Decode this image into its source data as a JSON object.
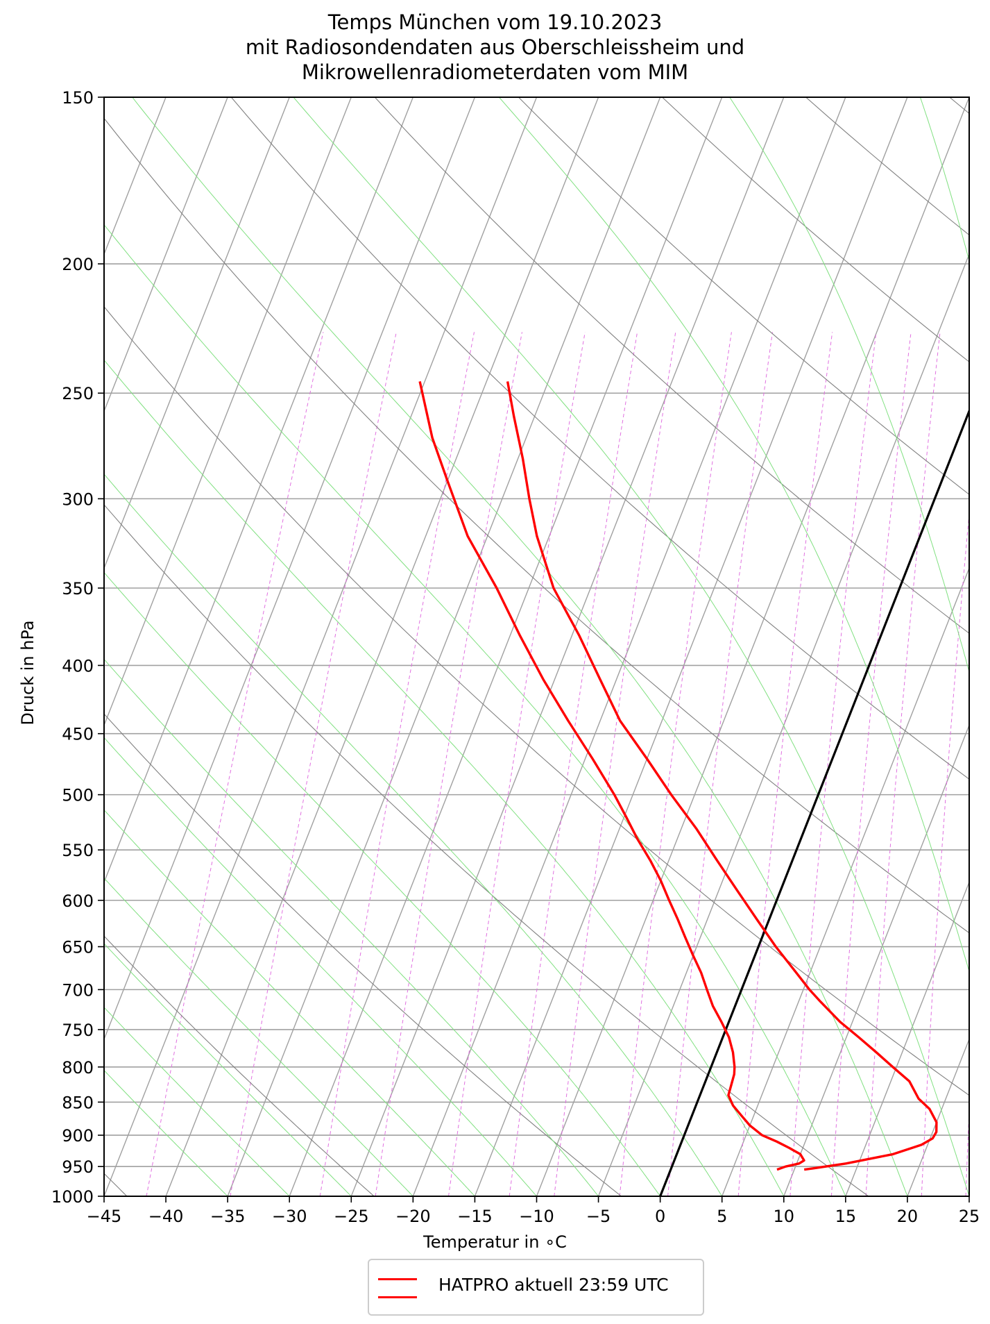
{
  "title": {
    "line1": "Temps München vom 19.10.2023",
    "line2": "mit Radiosondendaten aus Oberschleissheim und",
    "line3": "Mikrowellenradiometerdaten vom MIM"
  },
  "chart_data": {
    "type": "line",
    "kind": "skew-T log-p diagram",
    "xlabel": "Temperatur in  ∘C",
    "ylabel": "Druck in hPa",
    "xlim": [
      -45,
      25
    ],
    "ylim": [
      1000,
      150
    ],
    "y_scale": "log",
    "x_ticks": [
      "−45",
      "−40",
      "−35",
      "−30",
      "−25",
      "−20",
      "−15",
      "−10",
      "−5",
      "0",
      "5",
      "10",
      "15",
      "20",
      "25"
    ],
    "y_ticks": [
      "150",
      "200",
      "250",
      "300",
      "350",
      "400",
      "450",
      "500",
      "550",
      "600",
      "650",
      "700",
      "750",
      "800",
      "850",
      "900",
      "950",
      "1000"
    ],
    "grid": true,
    "legend_position": "bottom-center",
    "legend": [
      {
        "label": "HATPRO aktuell 23:59 UTC",
        "color": "#ff0000"
      }
    ],
    "colors": {
      "profile": "#ff0000",
      "isotherms": "#a0a0a0",
      "dry_adiabats": "#808080",
      "moist_adiabats": "#80e080",
      "mixing_ratio": "#e070e0",
      "zero_isotherm": "#000000"
    },
    "series": [
      {
        "role": "temperature",
        "color": "#ff0000",
        "pressure": [
          955,
          953,
          945,
          930,
          915,
          905,
          895,
          880,
          860,
          845,
          820,
          800,
          780,
          760,
          740,
          715,
          700,
          680,
          650,
          620,
          590,
          560,
          530,
          500,
          470,
          440,
          410,
          380,
          350,
          320,
          300,
          280,
          260,
          245
        ],
        "temperature": [
          10.8,
          11.5,
          14.0,
          17.5,
          19.5,
          20.2,
          20.3,
          20.0,
          19.0,
          17.8,
          16.5,
          14.7,
          12.9,
          11.0,
          9.0,
          6.8,
          5.5,
          3.9,
          1.4,
          -1.0,
          -3.5,
          -6.1,
          -8.8,
          -11.9,
          -15.0,
          -18.4,
          -21.3,
          -24.4,
          -28.0,
          -31.0,
          -32.8,
          -34.6,
          -36.7,
          -38.3
        ]
      },
      {
        "role": "dewpoint",
        "color": "#ff0000",
        "pressure": [
          955,
          950,
          945,
          940,
          930,
          920,
          910,
          900,
          885,
          870,
          855,
          840,
          825,
          810,
          800,
          780,
          760,
          740,
          720,
          700,
          680,
          660,
          640,
          620,
          600,
          580,
          560,
          540,
          520,
          500,
          470,
          440,
          410,
          380,
          350,
          320,
          290,
          270,
          245
        ],
        "temperature": [
          8.6,
          9.2,
          10.2,
          10.5,
          10.0,
          8.9,
          7.7,
          6.3,
          5.0,
          4.0,
          3.0,
          2.3,
          2.2,
          2.1,
          1.9,
          1.3,
          0.5,
          -0.6,
          -1.8,
          -2.8,
          -3.8,
          -5.0,
          -6.2,
          -7.4,
          -8.7,
          -10.0,
          -11.5,
          -13.2,
          -14.8,
          -16.5,
          -19.4,
          -22.6,
          -25.9,
          -29.2,
          -32.6,
          -36.6,
          -40.1,
          -42.6,
          -45.4
        ]
      }
    ],
    "zero_isotherm": {
      "x": 0
    }
  }
}
